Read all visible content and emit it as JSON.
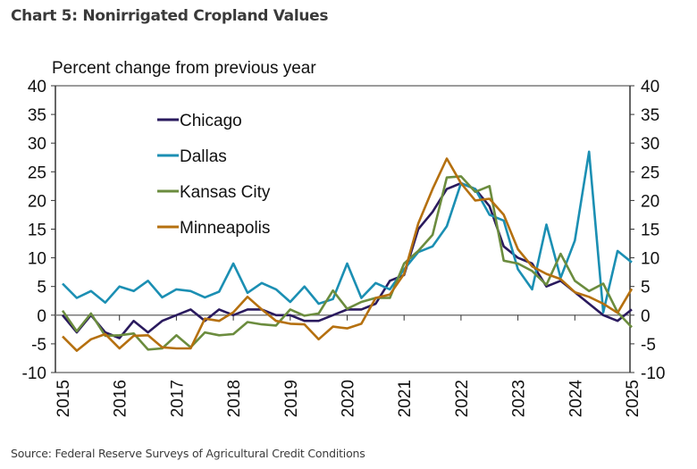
{
  "title": "Chart 5: Nonirrigated Cropland Values",
  "source": "Source: Federal Reserve Surveys of Agricultural Credit Conditions",
  "chart_data": {
    "type": "line",
    "title": "Chart 5: Nonirrigated Cropland Values",
    "ylabel": "Percent change from previous year",
    "xlabel": "",
    "ylim": [
      -10,
      40
    ],
    "yticks": [
      40,
      35,
      30,
      25,
      20,
      15,
      10,
      5,
      0,
      -5,
      -10
    ],
    "xticks": [
      "2015",
      "2016",
      "2017",
      "2018",
      "2019",
      "2020",
      "2021",
      "2022",
      "2023",
      "2024",
      "2025"
    ],
    "x_start": "2015Q1",
    "frequency": "quarterly",
    "grid": false,
    "legend_position": "top-left",
    "series": [
      {
        "name": "Chicago",
        "color": "#2a1a5e",
        "values": [
          0,
          -3,
          0,
          -3,
          -4,
          -1,
          -3,
          -1,
          0,
          1,
          -1,
          1,
          0,
          1,
          1,
          0,
          0,
          -1,
          -1,
          0,
          1,
          1,
          2,
          6,
          7,
          15,
          18,
          22,
          23,
          22,
          19,
          12,
          10,
          9,
          5,
          6,
          4,
          2,
          0,
          -1,
          1
        ]
      },
      {
        "name": "Dallas",
        "color": "#1b8fb3",
        "values": [
          5.5,
          3,
          4.2,
          2.2,
          5,
          4.2,
          6,
          3.1,
          4.5,
          4.2,
          3.1,
          4.1,
          9,
          3.9,
          5.6,
          4.5,
          2.3,
          5,
          2,
          2.8,
          9,
          3,
          5.6,
          4.5,
          8,
          11,
          12,
          15.5,
          23,
          22,
          17.5,
          16.5,
          8,
          4.5,
          15.8,
          6.5,
          13,
          28.5,
          0.5,
          11.2,
          9.2
        ]
      },
      {
        "name": "Kansas City",
        "color": "#6b8c3e",
        "values": [
          0.8,
          -2.8,
          0.3,
          -3.6,
          -3.5,
          -3.2,
          -6,
          -5.8,
          -3.5,
          -5.6,
          -3,
          -3.5,
          -3.3,
          -1.2,
          -1.6,
          -1.8,
          1,
          -0.1,
          0.3,
          4.3,
          1.1,
          2.3,
          3,
          3,
          9,
          11.2,
          14,
          24,
          24.2,
          21.5,
          22.5,
          9.5,
          9,
          7.7,
          5.3,
          10.7,
          6,
          4.2,
          5.5,
          0.5,
          -2.1
        ]
      },
      {
        "name": "Minneapolis",
        "color": "#b5700f",
        "values": [
          -3.7,
          -6.2,
          -4.2,
          -3.3,
          -5.8,
          -3.6,
          -3.5,
          -5.6,
          -5.8,
          -5.8,
          -0.6,
          -1,
          0.5,
          3.2,
          1,
          -1,
          -1.5,
          -1.6,
          -4.2,
          -2,
          -2.3,
          -1.5,
          3,
          3.6,
          7.2,
          16,
          22,
          27.3,
          23,
          20,
          20.3,
          17.5,
          11.5,
          8.5,
          7.2,
          6.3,
          4,
          3.2,
          2,
          0.4,
          4.6
        ]
      }
    ]
  }
}
